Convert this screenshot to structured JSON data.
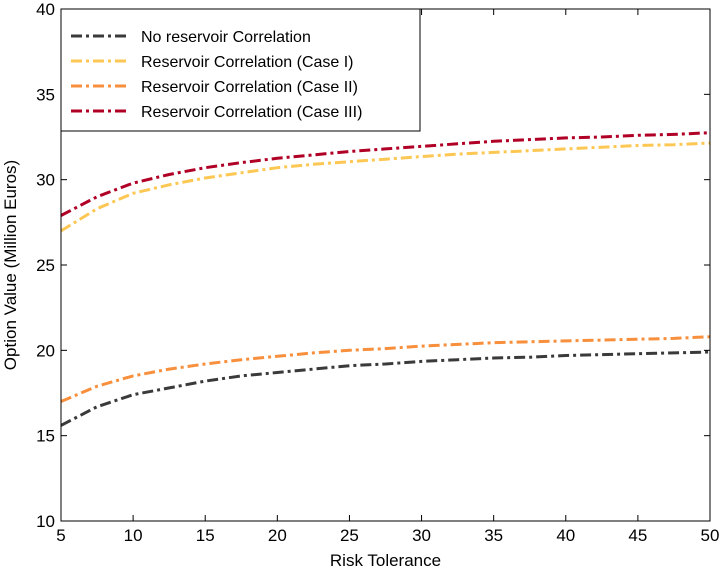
{
  "chart_data": {
    "type": "line",
    "title": "",
    "xlabel": "Risk Tolerance",
    "ylabel": "Option Value (Million Euros)",
    "xlim": [
      5,
      50
    ],
    "ylim": [
      10,
      40
    ],
    "xticks": [
      "5",
      "10",
      "15",
      "20",
      "25",
      "30",
      "35",
      "40",
      "45",
      "50"
    ],
    "yticks": [
      "10",
      "15",
      "20",
      "25",
      "30",
      "35",
      "40"
    ],
    "grid": false,
    "legend_position": "top-left",
    "line_style": "dash-dot",
    "x": [
      5,
      7.5,
      10,
      12.5,
      15,
      17.5,
      20,
      22.5,
      25,
      27.5,
      30,
      32.5,
      35,
      37.5,
      40,
      42.5,
      45,
      47.5,
      50
    ],
    "series": [
      {
        "name": "No reservoir Correlation",
        "color": "#3a3a3a",
        "values": [
          15.6,
          16.7,
          17.4,
          17.8,
          18.2,
          18.5,
          18.7,
          18.9,
          19.1,
          19.2,
          19.35,
          19.45,
          19.55,
          19.6,
          19.7,
          19.75,
          19.8,
          19.85,
          19.9
        ]
      },
      {
        "name": "Reservoir Correlation (Case I)",
        "color": "#fcc753",
        "values": [
          27.0,
          28.3,
          29.2,
          29.7,
          30.1,
          30.4,
          30.7,
          30.9,
          31.05,
          31.2,
          31.35,
          31.5,
          31.6,
          31.7,
          31.8,
          31.9,
          32.0,
          32.05,
          32.15
        ]
      },
      {
        "name": "Reservoir Correlation (Case II)",
        "color": "#f78f3c",
        "values": [
          17.0,
          17.9,
          18.5,
          18.9,
          19.2,
          19.45,
          19.65,
          19.85,
          20.0,
          20.1,
          20.25,
          20.35,
          20.45,
          20.5,
          20.55,
          20.6,
          20.65,
          20.7,
          20.8
        ]
      },
      {
        "name": "Reservoir Correlation (Case III)",
        "color": "#b10026",
        "values": [
          27.9,
          29.0,
          29.8,
          30.3,
          30.7,
          31.0,
          31.25,
          31.45,
          31.65,
          31.8,
          31.95,
          32.1,
          32.25,
          32.35,
          32.45,
          32.5,
          32.6,
          32.65,
          32.75
        ]
      }
    ]
  }
}
